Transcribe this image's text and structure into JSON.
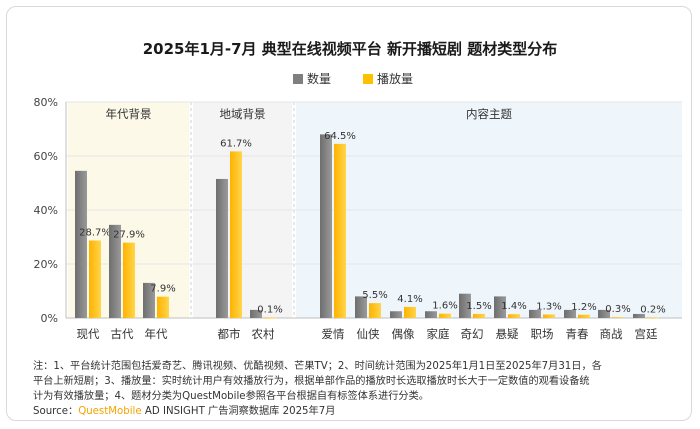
{
  "chart_data": {
    "type": "bar",
    "title": "2025年1月-7月 典型在线视频平台 新开播短剧 题材类型分布",
    "legend": {
      "placement": "top-center"
    },
    "ylim": [
      0,
      80
    ],
    "yticks": [
      "0%",
      "20%",
      "40%",
      "60%",
      "80%"
    ],
    "groups": [
      {
        "label": "年代背景",
        "categories": [
          "现代",
          "古代",
          "年代"
        ],
        "background": "#fcf9e8"
      },
      {
        "label": "地域背景",
        "categories": [
          "都市",
          "农村"
        ],
        "background": "#f4f4f4"
      },
      {
        "label": "内容主题",
        "categories": [
          "爱情",
          "仙侠",
          "偶像",
          "家庭",
          "奇幻",
          "悬疑",
          "职场",
          "青春",
          "商战",
          "宫廷"
        ],
        "background": "#eef5fb"
      }
    ],
    "categories": [
      "现代",
      "古代",
      "年代",
      "都市",
      "农村",
      "爱情",
      "仙侠",
      "偶像",
      "家庭",
      "奇幻",
      "悬疑",
      "职场",
      "青春",
      "商战",
      "宫廷"
    ],
    "series": [
      {
        "name": "数量",
        "color": "#7f7f7f",
        "values": [
          54.5,
          34.5,
          13.0,
          51.5,
          3.0,
          68.0,
          8.0,
          2.5,
          2.5,
          9.0,
          8.0,
          3.0,
          3.0,
          3.0,
          1.5
        ]
      },
      {
        "name": "播放量",
        "color": "#ffc000",
        "values": [
          28.7,
          27.9,
          7.9,
          61.7,
          0.1,
          64.5,
          5.5,
          4.1,
          1.6,
          1.5,
          1.4,
          1.3,
          1.2,
          0.3,
          0.2
        ],
        "labels": [
          "28.7%",
          "27.9%",
          "7.9%",
          "61.7%",
          "0.1%",
          "64.5%",
          "5.5%",
          "4.1%",
          "1.6%",
          "1.5%",
          "1.4%",
          "1.3%",
          "1.2%",
          "0.3%",
          "0.2%"
        ]
      }
    ],
    "grid": true
  },
  "footer": {
    "note_1": "注：1、平台统计范围包括爱奇艺、腾讯视频、优酷视频、芒果TV；2、时间统计范围为2025年1月1日至2025年7月31日，各",
    "note_2": "平台上新短剧；3、播放量：实时统计用户有效播放行为，根据单部作品的播放时长选取播放时长大于一定数值的观看设备统",
    "note_3": "计为有效播放量；4、题材分类为QuestMobile参照各平台根据自有标签体系进行分类。",
    "source_prefix": "Source：",
    "source_brand": "QuestMobile",
    "source_rest": " AD INSIGHT 广告洞察数据库 2025年7月"
  }
}
